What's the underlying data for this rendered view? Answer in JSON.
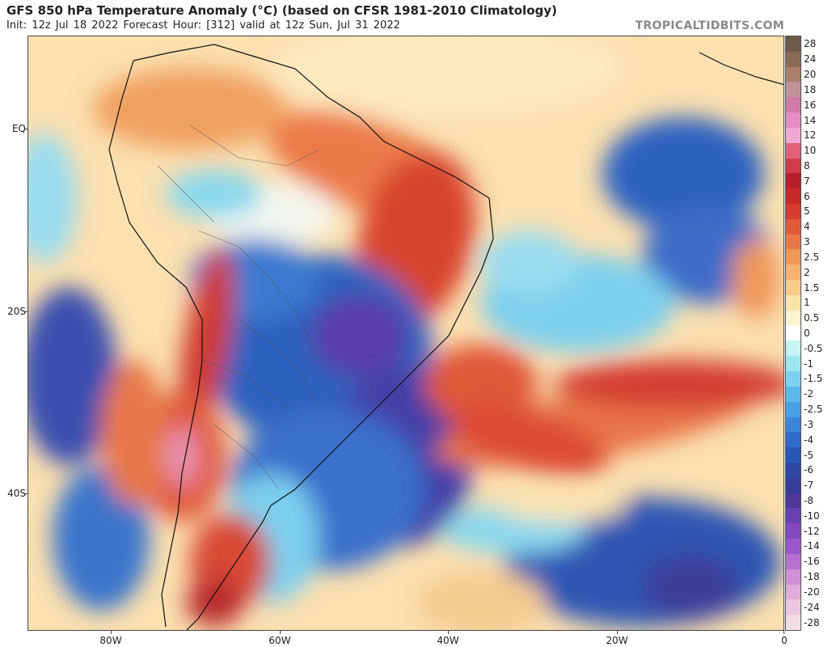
{
  "header": {
    "title": "GFS 850 hPa Temperature Anomaly (°C) (based on CFSR 1981-2010 Climatology)",
    "subtitle": "Init: 12z Jul 18 2022   Forecast Hour: [312]   valid at 12z Sun, Jul 31 2022",
    "brand": "TROPICALTIDBITS.COM"
  },
  "axes": {
    "lat_labels": [
      "EQ",
      "20S",
      "40S"
    ],
    "lon_labels": [
      "80W",
      "60W",
      "40W",
      "20W",
      "0"
    ]
  },
  "colorbar": {
    "labels": [
      "28",
      "24",
      "20",
      "18",
      "16",
      "14",
      "12",
      "10",
      "8",
      "7",
      "6",
      "5",
      "4",
      "3",
      "2.5",
      "2",
      "1.5",
      "1",
      "0.5",
      "0",
      "-0.5",
      "-1",
      "-1.5",
      "-2",
      "-2.5",
      "-3",
      "-4",
      "-5",
      "-6",
      "-7",
      "-8",
      "-10",
      "-12",
      "-14",
      "-16",
      "-18",
      "-20",
      "-24",
      "-28"
    ],
    "colors": [
      "#6e5a4a",
      "#8b6a55",
      "#a8806a",
      "#c0929a",
      "#d07aa8",
      "#e48fc4",
      "#f0a8d4",
      "#e0607a",
      "#d03c4c",
      "#b81e2c",
      "#c82828",
      "#d63c30",
      "#e05a3a",
      "#e87848",
      "#f09858",
      "#f5b270",
      "#f8cc88",
      "#fbe4a8",
      "#fdf4d2",
      "#ffffff",
      "#c8f4f4",
      "#9ee6f0",
      "#7cd2ee",
      "#5cb8ea",
      "#4aa0e4",
      "#3c86d8",
      "#2e6cc8",
      "#2a56b4",
      "#2c48a4",
      "#3a3c9a",
      "#50389a",
      "#6a40b0",
      "#8448c0",
      "#9a58cc",
      "#b870d0",
      "#d090d4",
      "#e0acd8",
      "#ecc6de",
      "#f4dce6"
    ]
  }
}
